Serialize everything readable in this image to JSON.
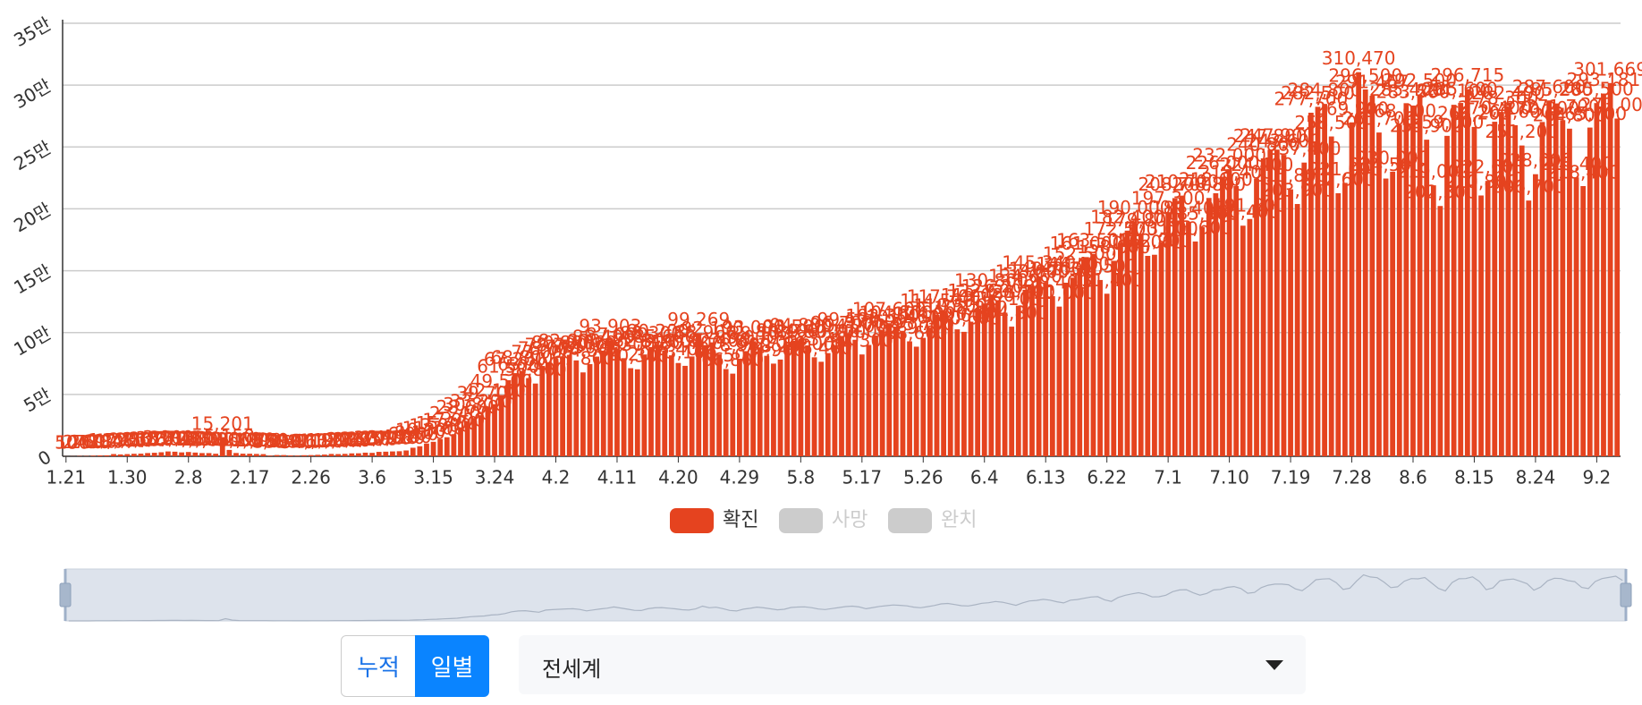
{
  "chart_data": {
    "type": "bar",
    "categories": [
      "1.21",
      null,
      null,
      null,
      null,
      null,
      null,
      null,
      null,
      "1.30",
      null,
      null,
      null,
      null,
      null,
      null,
      null,
      null,
      "2.8",
      null,
      null,
      null,
      null,
      null,
      null,
      null,
      null,
      "2.17",
      null,
      null,
      null,
      null,
      null,
      null,
      null,
      null,
      "2.26",
      null,
      null,
      null,
      null,
      null,
      null,
      null,
      null,
      "3.6",
      null,
      null,
      null,
      null,
      null,
      null,
      null,
      null,
      "3.15",
      null,
      null,
      null,
      null,
      null,
      null,
      null,
      null,
      "3.24",
      null,
      null,
      null,
      null,
      null,
      null,
      null,
      null,
      "4.2",
      null,
      null,
      null,
      null,
      null,
      null,
      null,
      null,
      "4.11",
      null,
      null,
      null,
      null,
      null,
      null,
      null,
      null,
      "4.20",
      null,
      null,
      null,
      null,
      null,
      null,
      null,
      null,
      "4.29",
      null,
      null,
      null,
      null,
      null,
      null,
      null,
      null,
      "5.8",
      null,
      null,
      null,
      null,
      null,
      null,
      null,
      null,
      "5.17",
      null,
      null,
      null,
      null,
      null,
      null,
      null,
      null,
      "5.26",
      null,
      null,
      null,
      null,
      null,
      null,
      null,
      null,
      "6.4",
      null,
      null,
      null,
      null,
      null,
      null,
      null,
      null,
      "6.13",
      null,
      null,
      null,
      null,
      null,
      null,
      null,
      null,
      "6.22",
      null,
      null,
      null,
      null,
      null,
      null,
      null,
      null,
      "7.1",
      null,
      null,
      null,
      null,
      null,
      null,
      null,
      null,
      "7.10",
      null,
      null,
      null,
      null,
      null,
      null,
      null,
      null,
      "7.19",
      null,
      null,
      null,
      null,
      null,
      null,
      null,
      null,
      "7.28",
      null,
      null,
      null,
      null,
      null,
      null,
      null,
      null,
      "8.6",
      null,
      null,
      null,
      null,
      null,
      null,
      null,
      null,
      "8.15",
      null,
      null,
      null,
      null,
      null,
      null,
      null,
      null,
      "8.24",
      null,
      null,
      null,
      null,
      null,
      null,
      null,
      null,
      "9.2",
      null,
      null,
      null
    ],
    "series": [
      {
        "name": "확진",
        "color": "#e5431f",
        "values": [
          50,
          100,
          270,
          260,
          480,
          690,
          780,
          1790,
          1480,
          1750,
          2010,
          2120,
          2610,
          2830,
          3240,
          3900,
          3700,
          3150,
          3460,
          3000,
          2600,
          2580,
          2050,
          15201,
          5150,
          2660,
          2100,
          2060,
          1890,
          1750,
          550,
          1010,
          990,
          640,
          540,
          870,
          960,
          1180,
          1380,
          1900,
          1770,
          1960,
          2360,
          2410,
          2930,
          2770,
          3570,
          3720,
          3920,
          4080,
          4700,
          6900,
          8100,
          10300,
          11700,
          13900,
          15400,
          17900,
          23400,
          28600,
          30800,
          33200,
          39700,
          42100,
          49500,
          61500,
          67200,
          68800,
          63200,
          58800,
          73000,
          76000,
          78700,
          80800,
          82000,
          77500,
          67800,
          74500,
          80600,
          85400,
          93903,
          87000,
          79300,
          71200,
          70300,
          82300,
          88300,
          90200,
          85600,
          81600,
          75400,
          73100,
          80700,
          99269,
          88900,
          92100,
          82400,
          70500,
          66800,
          78900,
          85000,
          93000,
          88100,
          81200,
          74900,
          78200,
          90400,
          93500,
          94800,
          89500,
          80000,
          76400,
          83400,
          89700,
          96700,
          99500,
          94200,
          82300,
          90000,
          97600,
          102300,
          107600,
          104800,
          101400,
          92900,
          88600,
          95700,
          104000,
          114500,
          117700,
          110500,
          102600,
          100600,
          108800,
          119000,
          122600,
          130800,
          126200,
          116100,
          104800,
          121700,
          134600,
          138000,
          145340,
          140200,
          129400,
          121000,
          140300,
          144400,
          152500,
          161000,
          163500,
          142500,
          131400,
          158000,
          172500,
          182400,
          190000,
          179800,
          162000,
          162900,
          173000,
          197300,
          208700,
          210700,
          189400,
          173600,
          185300,
          208800,
          212600,
          226000,
          232000,
          218400,
          186400,
          191800,
          224400,
          240800,
          247800,
          247900,
          243600,
          215800,
          203900,
          237400,
          277700,
          282500,
          284800,
          258500,
          212600,
          221000,
          269900,
          310470,
          296500,
          291467,
          261700,
          224500,
          230000,
          268000,
          285400,
          283500,
          292500,
          255900,
          219000,
          202300,
          259000,
          284100,
          285600,
          296715,
          266200,
          210800,
          222600,
          270400,
          278300,
          282400,
          267600,
          251200,
          206700,
          228000,
          270200,
          287600,
          285200,
          271700,
          264800,
          225400,
          218400,
          265700,
          285500,
          293181,
          301669,
          273000
        ]
      }
    ],
    "value_labels": [
      "50",
      "100",
      "270",
      "260",
      "480",
      "690",
      "780",
      "1,790",
      "1,480",
      "1,750",
      "2,010",
      "2,120",
      "2,610",
      "2,830",
      "3,240",
      "3,900",
      "3,700",
      "3,150",
      "3,460",
      "3,000",
      "2,600",
      "2,580",
      "2,050",
      "15,201",
      "5,150",
      "2,660",
      "2,100",
      "2,060",
      "1,890",
      "1,750",
      "550",
      "1,010",
      "990",
      "640",
      "540",
      "870",
      "960",
      "1,180",
      "1,380",
      "1,900",
      "1,770",
      "1,960",
      "2,360",
      "2,410",
      "2,930",
      "2,770",
      "3,570",
      "3,720",
      "3,920",
      "4,080",
      "4,700",
      "6,900",
      "8,100",
      "10,300",
      "11,700",
      "13,900",
      "15,400",
      "17,900",
      "23,400",
      "28,600",
      "30,800",
      "33,200",
      "39,700",
      "42,100",
      "49,500",
      "61,500",
      "67,200",
      "68,800",
      "63,200",
      "58,800",
      "73,000",
      "76,000",
      "78,700",
      "80,800",
      "82,000",
      "77,500",
      "67,800",
      "74,500",
      "80,600",
      "85,400",
      "93,903",
      "87,000",
      "79,300",
      "71,200",
      "70,300",
      "82,300",
      "88,300",
      "90,200",
      "85,600",
      "81,600",
      "75,400",
      "73,100",
      "80,700",
      "99,269",
      "88,900",
      "92,100",
      "82,400",
      "70,500",
      "66,800",
      "78,900",
      "85,000",
      "93,000",
      "88,100",
      "81,200",
      "74,900",
      "78,200",
      "90,400",
      "93,500",
      "94,800",
      "89,500",
      "80,000",
      "76,400",
      "83,400",
      "89,700",
      "96,700",
      "99,500",
      "94,200",
      "82,300",
      "90,000",
      "97,600",
      "102,300",
      "107,600",
      "104,800",
      "101,400",
      "92,900",
      "88,600",
      "95,700",
      "104,000",
      "114,500",
      "117,700",
      "110,500",
      "102,600",
      "100,600",
      "108,800",
      "119,000",
      "122,600",
      "130,800",
      "126,200",
      "116,100",
      "104,800",
      "121,700",
      "134,600",
      "138,000",
      "145,340",
      "140,200",
      "129,400",
      "121,000",
      "140,300",
      "144,400",
      "152,500",
      "161,000",
      "163,500",
      "142,500",
      "131,400",
      "158,000",
      "172,500",
      "182,400",
      "190,000",
      "179,800",
      "162,000",
      "162,900",
      "173,000",
      "197,300",
      "208,700",
      "210,700",
      "189,400",
      "173,600",
      "185,300",
      "208,800",
      "212,600",
      "226,000",
      "232,000",
      "218,400",
      "186,400",
      "191,800",
      "224,400",
      "240,800",
      "247,800",
      "247,900",
      "243,600",
      "215,800",
      "203,900",
      "237,400",
      "277,700",
      "282,500",
      "284,800",
      "258,500",
      "212,600",
      "221,000",
      "269,900",
      "310,470",
      "296,500",
      "291,467",
      "261,700",
      "224,500",
      "230,000",
      "268,000",
      "285,400",
      "283,500",
      "292,500",
      "255,900",
      "219,000",
      "202,300",
      "259,000",
      "284,100",
      "285,600",
      "296,715",
      "266,200",
      "210,800",
      "222,600",
      "270,400",
      "278,300",
      "282,400",
      "267,600",
      "251,200",
      "206,700",
      "228,000",
      "270,200",
      "287,600",
      "285,200",
      "271,700",
      "264,800",
      "225,400",
      "218,400",
      "265,700",
      "285,500",
      "293,181",
      "301,669",
      "273,000"
    ],
    "hidden_series": [
      {
        "name": "사망",
        "color": "#cccccc"
      },
      {
        "name": "완치",
        "color": "#cccccc"
      }
    ],
    "ylim": [
      0,
      350000
    ],
    "yticks": [
      0,
      {
        "value": 50000,
        "label": "5만"
      },
      {
        "value": 100000,
        "label": "10만"
      },
      {
        "value": 150000,
        "label": "15만"
      },
      {
        "value": 200000,
        "label": "20만"
      },
      {
        "value": 250000,
        "label": "25만"
      },
      {
        "value": 300000,
        "label": "30만"
      },
      {
        "value": 350000,
        "label": "35만"
      }
    ],
    "grid": true
  },
  "controls": {
    "buttons": [
      "누적",
      "일별"
    ],
    "active": 1,
    "select": "전세계"
  }
}
